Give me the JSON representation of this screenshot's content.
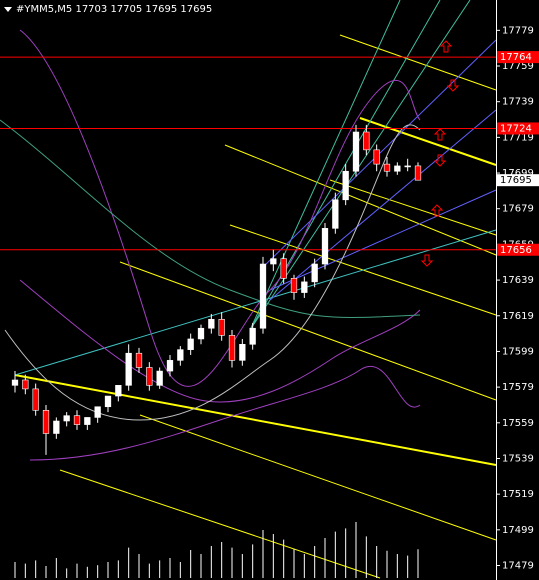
{
  "chart_data": {
    "type": "candlestick",
    "title": "#YMM5,M5  17703 17705 17695 17695",
    "open": [
      17580,
      17583,
      17578,
      17566,
      17553,
      17560,
      17563,
      17558,
      17562,
      17568,
      17574,
      17580,
      17598,
      17590,
      17580,
      17588,
      17594,
      17600,
      17606,
      17612,
      17617,
      17608,
      17594,
      17603,
      17612,
      17648,
      17651,
      17640,
      17632,
      17638,
      17648,
      17668,
      17684,
      17700,
      17722,
      17712,
      17704,
      17700,
      17703,
      17703
    ],
    "high": [
      17588,
      17586,
      17581,
      17569,
      17562,
      17565,
      17566,
      17562,
      17567,
      17572,
      17578,
      17603,
      17601,
      17593,
      17590,
      17597,
      17602,
      17609,
      17614,
      17620,
      17621,
      17611,
      17606,
      17615,
      17652,
      17656,
      17654,
      17642,
      17641,
      17651,
      17671,
      17688,
      17704,
      17726,
      17726,
      17715,
      17708,
      17705,
      17707,
      17705
    ],
    "low": [
      17576,
      17575,
      17563,
      17541,
      17550,
      17557,
      17555,
      17555,
      17559,
      17565,
      17571,
      17577,
      17587,
      17577,
      17578,
      17585,
      17591,
      17597,
      17603,
      17609,
      17605,
      17590,
      17591,
      17600,
      17609,
      17644,
      17637,
      17628,
      17629,
      17635,
      17645,
      17665,
      17681,
      17697,
      17709,
      17700,
      17697,
      17698,
      17700,
      17695
    ],
    "close": [
      17583,
      17578,
      17566,
      17553,
      17560,
      17563,
      17558,
      17562,
      17568,
      17574,
      17580,
      17598,
      17590,
      17580,
      17588,
      17594,
      17600,
      17606,
      17612,
      17617,
      17608,
      17594,
      17603,
      17612,
      17648,
      17651,
      17640,
      17632,
      17638,
      17648,
      17668,
      17684,
      17700,
      17722,
      17712,
      17704,
      17700,
      17703,
      17703,
      17695
    ],
    "volume": [
      20,
      18,
      22,
      15,
      25,
      12,
      18,
      14,
      16,
      20,
      22,
      38,
      30,
      18,
      22,
      25,
      20,
      35,
      30,
      40,
      45,
      38,
      30,
      42,
      60,
      55,
      48,
      36,
      30,
      40,
      50,
      58,
      62,
      70,
      52,
      40,
      34,
      30,
      28,
      36
    ],
    "volume_lim": [
      0,
      100
    ],
    "up_color": "#ffffff",
    "down_color": "#ff0000",
    "ylim": [
      17472,
      17796
    ],
    "yticks": [
      17779,
      17759,
      17739,
      17719,
      17699,
      17679,
      17659,
      17639,
      17619,
      17599,
      17579,
      17559,
      17539,
      17519,
      17499,
      17479
    ],
    "hlines": [
      {
        "value": 17764,
        "color": "#ff0000"
      },
      {
        "value": 17724,
        "color": "#ff0000"
      },
      {
        "value": 17656,
        "color": "#ff0000"
      }
    ],
    "last_price": 17695
  }
}
